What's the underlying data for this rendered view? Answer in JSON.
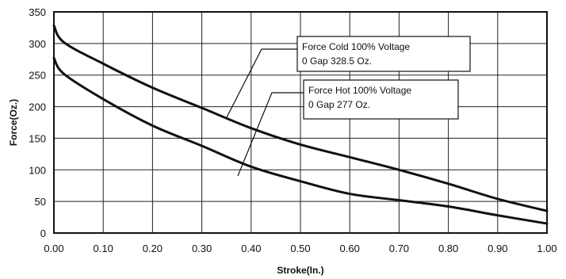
{
  "chart_data": {
    "type": "line",
    "title": "",
    "xlabel": "Stroke(In.)",
    "ylabel": "Force(Oz.)",
    "xlim": [
      0,
      1.0
    ],
    "ylim": [
      0,
      350
    ],
    "x_ticks": [
      "0.00",
      "0.10",
      "0.20",
      "0.30",
      "0.40",
      "0.50",
      "0.60",
      "0.70",
      "0.80",
      "0.90",
      "1.00"
    ],
    "y_ticks": [
      "0",
      "50",
      "100",
      "150",
      "200",
      "250",
      "300",
      "350"
    ],
    "grid": true,
    "series": [
      {
        "name": "Force Cold 100% Voltage",
        "x": [
          0.0,
          0.02,
          0.1,
          0.2,
          0.3,
          0.4,
          0.5,
          0.6,
          0.7,
          0.8,
          0.9,
          1.0
        ],
        "y": [
          328.5,
          302,
          268,
          230,
          198,
          166,
          140,
          120,
          100,
          78,
          54,
          35
        ]
      },
      {
        "name": "Force Hot 100% Voltage",
        "x": [
          0.0,
          0.02,
          0.1,
          0.2,
          0.3,
          0.4,
          0.5,
          0.6,
          0.7,
          0.8,
          0.9,
          1.0
        ],
        "y": [
          277,
          252,
          212,
          170,
          138,
          105,
          82,
          62,
          52,
          42,
          28,
          15
        ]
      }
    ],
    "annotations": [
      {
        "series": 0,
        "line1": "Force Cold 100% Voltage",
        "line2": "0 Gap 328.5 Oz."
      },
      {
        "series": 1,
        "line1": "Force Hot 100% Voltage",
        "line2": "0 Gap 277 Oz."
      }
    ]
  }
}
